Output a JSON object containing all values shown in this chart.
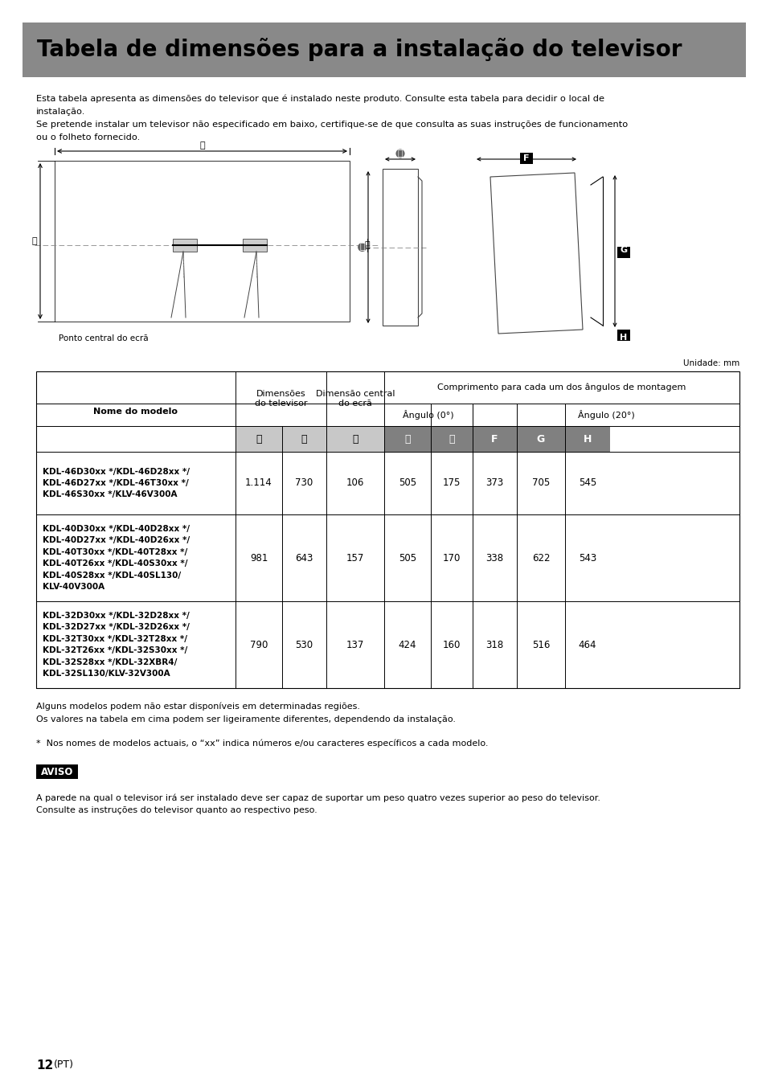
{
  "title": "Tabela de dimensões para a instalação do televisor",
  "title_bg": "#898989",
  "page_bg": "#ffffff",
  "para1_line1": "Esta tabela apresenta as dimensões do televisor que é instalado neste produto. Consulte esta tabela para decidir o local de",
  "para1_line2": "instalação.",
  "para1_line3": "Se pretende instalar um televisor não especificado em baixo, certifique-se de que consulta as suas instruções de funcionamento",
  "para1_line4": "ou o folheto fornecido.",
  "unit_label": "Unidade: mm",
  "diagram_caption": "Ponto central do ecrã",
  "footnote1": "Alguns modelos podem não estar disponíveis em determinadas regiões.",
  "footnote2": "Os valores na tabela em cima podem ser ligeiramente diferentes, dependendo da instalação.",
  "footnote3": "*  Nos nomes de modelos actuais, o “xx” indica números e/ou caracteres específicos a cada modelo.",
  "aviso_label": "AVISO",
  "aviso_text_line1": "A parede na qual o televisor irá ser instalado deve ser capaz de suportar um peso quatro vezes superior ao peso do televisor.",
  "aviso_text_line2": "Consulte as instruções do televisor quanto ao respectivo peso.",
  "page_number": "12",
  "page_pt": "(PT)",
  "rows": [
    {
      "model": "KDL-46D30xx */KDL-46D28xx */\nKDL-46D27xx */KDL-46T30xx */\nKDL-46S30xx */KLV-46V300A",
      "A": "1.114",
      "B": "730",
      "C": "106",
      "D": "505",
      "E": "175",
      "F": "373",
      "G": "705",
      "H": "545"
    },
    {
      "model": "KDL-40D30xx */KDL-40D28xx */\nKDL-40D27xx */KDL-40D26xx */\nKDL-40T30xx */KDL-40T28xx */\nKDL-40T26xx */KDL-40S30xx */\nKDL-40S28xx */KDL-40SL130/\nKLV-40V300A",
      "A": "981",
      "B": "643",
      "C": "157",
      "D": "505",
      "E": "170",
      "F": "338",
      "G": "622",
      "H": "543"
    },
    {
      "model": "KDL-32D30xx */KDL-32D28xx */\nKDL-32D27xx */KDL-32D26xx */\nKDL-32T30xx */KDL-32T28xx */\nKDL-32T26xx */KDL-32S30xx */\nKDL-32S28xx */KDL-32XBR4/\nKDL-32SL130/KLV-32V300A",
      "A": "790",
      "B": "530",
      "C": "137",
      "D": "424",
      "E": "160",
      "F": "318",
      "G": "516",
      "H": "464"
    }
  ]
}
